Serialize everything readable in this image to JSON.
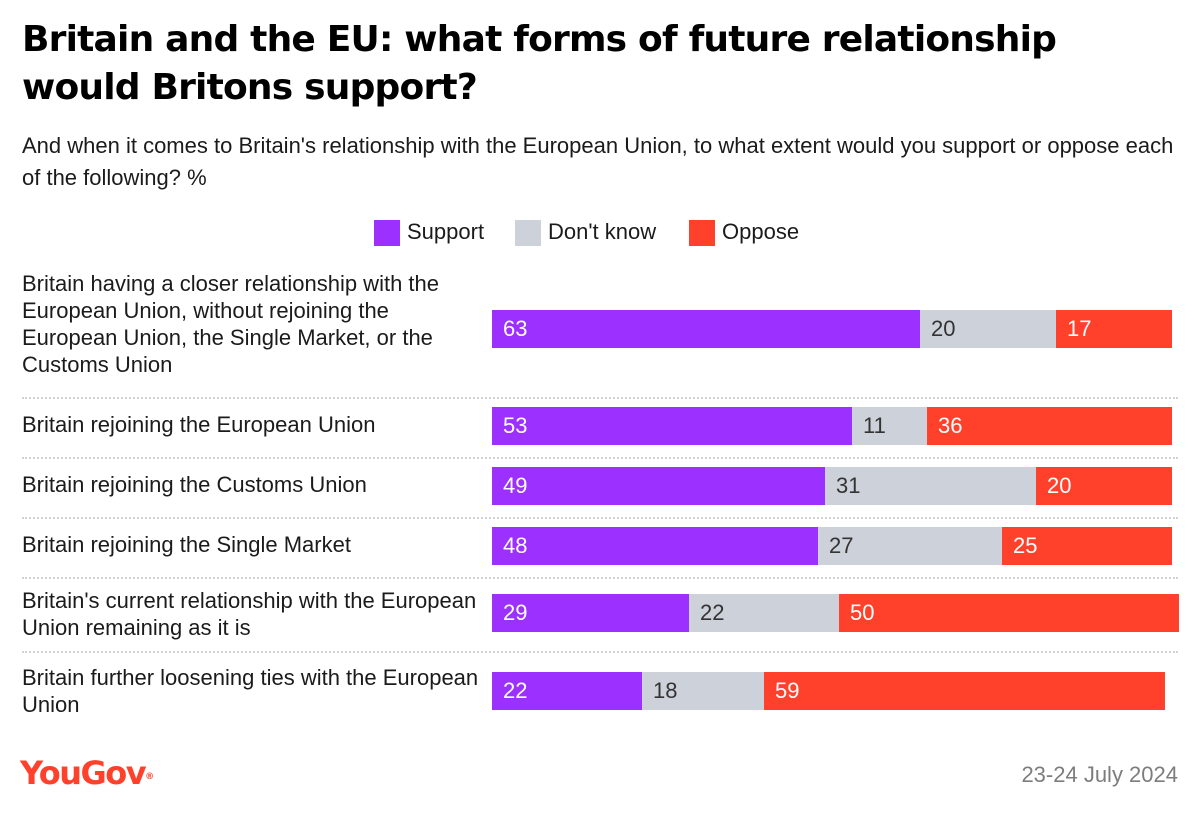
{
  "title": "Britain and the EU: what forms of future relationship would Britons support?",
  "subtitle": "And when it comes to Britain's relationship with the European Union, to what extent would you support or oppose each of the following? %",
  "legend": {
    "support": "Support",
    "dont_know": "Don't know",
    "oppose": "Oppose"
  },
  "colors": {
    "support": "#9b30ff",
    "dont_know": "#cdd1da",
    "oppose": "#ff412c"
  },
  "brand": {
    "logo_text": "YouGov",
    "logo_mark": "®"
  },
  "date": "23-24 July 2024",
  "chart_data": {
    "type": "bar",
    "orientation": "horizontal",
    "stacked": true,
    "unit": "%",
    "title": "Britain and the EU: what forms of future relationship would Britons support?",
    "subtitle": "And when it comes to Britain's relationship with the European Union, to what extent would you support or oppose each of the following? %",
    "legend_position": "top-center",
    "grid": false,
    "categories": [
      "Britain having a closer relationship with the European Union, without rejoining the European Union, the Single Market, or the Customs Union",
      "Britain rejoining the European Union",
      "Britain rejoining the Customs Union",
      "Britain rejoining the Single Market",
      "Britain's current relationship with the European Union remaining as it is",
      "Britain further loosening ties with the European Union"
    ],
    "series": [
      {
        "name": "Support",
        "values": [
          63,
          53,
          49,
          48,
          29,
          22
        ]
      },
      {
        "name": "Don't know",
        "values": [
          20,
          11,
          31,
          27,
          22,
          18
        ]
      },
      {
        "name": "Oppose",
        "values": [
          17,
          36,
          20,
          25,
          50,
          59
        ]
      }
    ]
  }
}
